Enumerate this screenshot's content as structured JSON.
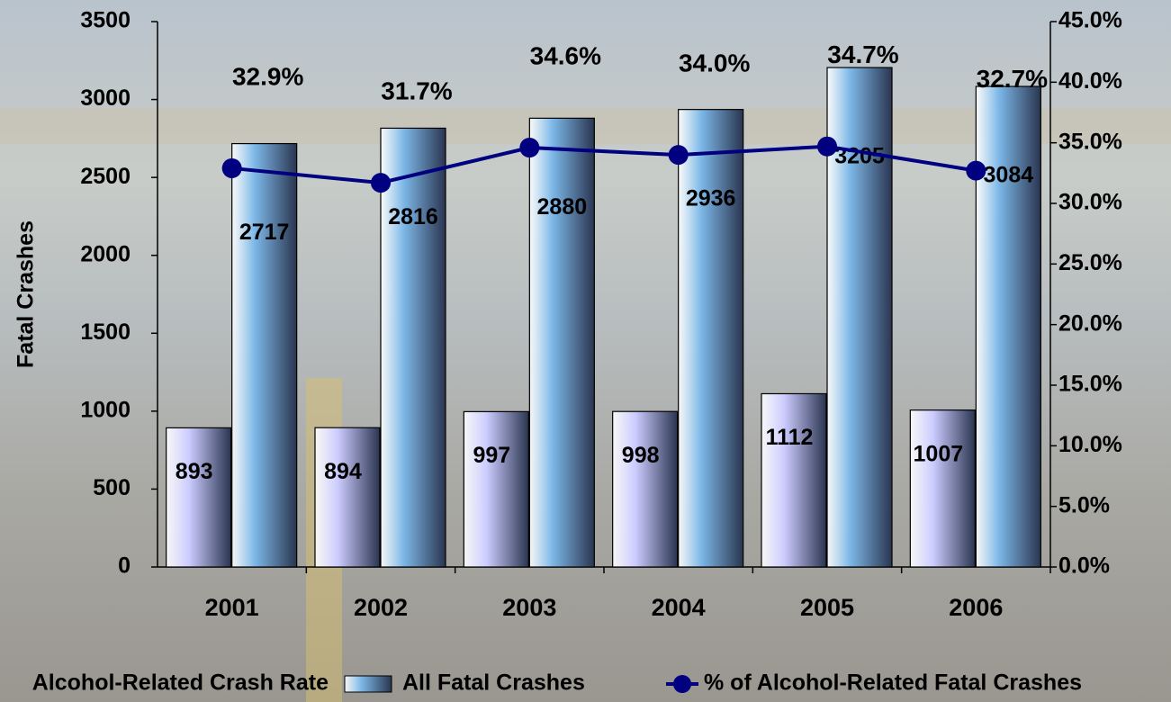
{
  "chart_data": {
    "type": "bar-line",
    "y_axis_label": "Fatal Crashes",
    "categories": [
      "2001",
      "2002",
      "2003",
      "2004",
      "2005",
      "2006"
    ],
    "series": [
      {
        "name": "Alcohol-Related Crash Rate",
        "type": "bar",
        "color": "#ccccff",
        "values": [
          893,
          894,
          997,
          998,
          1112,
          1007
        ]
      },
      {
        "name": "All Fatal Crashes",
        "type": "bar",
        "color": "#7db8e8",
        "values": [
          2717,
          2816,
          2880,
          2936,
          3205,
          3084
        ]
      },
      {
        "name": "% of Alcohol-Related Fatal Crashes",
        "type": "line",
        "axis": "y2",
        "color": "#000080",
        "values": [
          32.9,
          31.7,
          34.6,
          34.0,
          34.7,
          32.7
        ],
        "value_labels": [
          "32.9%",
          "31.7%",
          "34.6%",
          "34.0%",
          "34.7%",
          "32.7%"
        ]
      }
    ],
    "ylim": [
      0,
      3500
    ],
    "yticks": [
      0,
      500,
      1000,
      1500,
      2000,
      2500,
      3000,
      3500
    ],
    "y2lim": [
      0,
      45
    ],
    "y2ticks": [
      {
        "value": 0,
        "label": "0.0%"
      },
      {
        "value": 5,
        "label": "5.0%"
      },
      {
        "value": 10,
        "label": "10.0%"
      },
      {
        "value": 15,
        "label": "15.0%"
      },
      {
        "value": 20,
        "label": "20.0%"
      },
      {
        "value": 25,
        "label": "25.0%"
      },
      {
        "value": 30,
        "label": "30.0%"
      },
      {
        "value": 35,
        "label": "35.0%"
      },
      {
        "value": 40,
        "label": "40.0%"
      },
      {
        "value": 45,
        "label": "45.0%"
      }
    ],
    "legend": "bottom"
  }
}
